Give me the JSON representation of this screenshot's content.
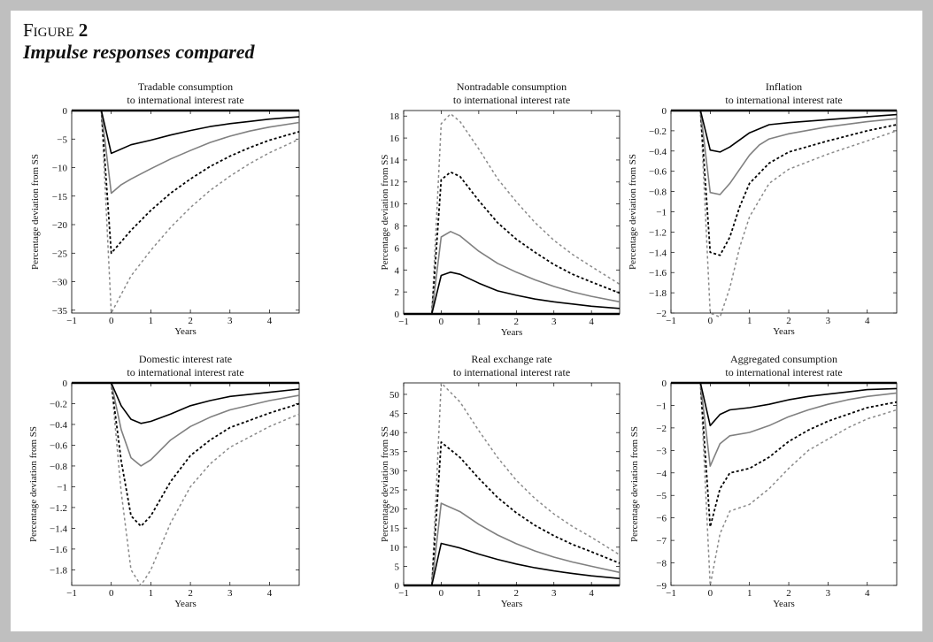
{
  "figure": {
    "label": "Figure",
    "number": "2",
    "title": "Impulse responses compared"
  },
  "chart_data": [
    {
      "type": "line",
      "title": [
        "Tradable consumption",
        "to international interest rate"
      ],
      "xlabel": "Years",
      "ylabel": "Percentage deviation from SS",
      "xlim": [
        -1,
        4.75
      ],
      "ylim": [
        -35.5,
        0
      ],
      "xticks": [
        -1,
        0,
        1,
        2,
        3,
        4
      ],
      "yticks": [
        0,
        -5,
        -10,
        -15,
        -20,
        -25,
        -30,
        -35
      ],
      "grid": false,
      "series": [
        {
          "style": "thick-black",
          "x": [
            -1,
            4.75
          ],
          "y": [
            0,
            0
          ]
        },
        {
          "style": "black-solid",
          "x": [
            -1,
            -0.25,
            0,
            0.5,
            1,
            1.5,
            2,
            2.5,
            3,
            3.5,
            4,
            4.75
          ],
          "y": [
            0,
            0,
            -7.5,
            -6,
            -5.2,
            -4.3,
            -3.5,
            -2.8,
            -2.3,
            -1.9,
            -1.5,
            -1.1
          ]
        },
        {
          "style": "gray-solid",
          "x": [
            -1,
            -0.25,
            0,
            0.25,
            0.5,
            1,
            1.5,
            2,
            2.5,
            3,
            3.5,
            4,
            4.75
          ],
          "y": [
            0,
            0,
            -14.5,
            -13,
            -12,
            -10.2,
            -8.5,
            -7,
            -5.6,
            -4.5,
            -3.6,
            -2.9,
            -2.1
          ]
        },
        {
          "style": "black-dashed",
          "x": [
            -1,
            -0.25,
            0,
            0.5,
            1,
            1.5,
            2,
            2.5,
            3,
            3.5,
            4,
            4.75
          ],
          "y": [
            0,
            0,
            -25,
            -21,
            -17.5,
            -14.5,
            -12,
            -9.8,
            -8,
            -6.5,
            -5.2,
            -3.7
          ]
        },
        {
          "style": "gray-dashed",
          "x": [
            -1,
            -0.25,
            0,
            0.5,
            1,
            1.5,
            2,
            2.5,
            3,
            3.5,
            4,
            4.75
          ],
          "y": [
            0,
            0,
            -35.5,
            -29,
            -24.5,
            -20.5,
            -17,
            -14,
            -11.5,
            -9.3,
            -7.4,
            -5
          ]
        }
      ]
    },
    {
      "type": "line",
      "title": [
        "Nontradable consumption",
        "to international interest rate"
      ],
      "xlabel": "Years",
      "ylabel": "Percentage deviation from SS",
      "xlim": [
        -1,
        4.75
      ],
      "ylim": [
        0,
        18.5
      ],
      "xticks": [
        -1,
        0,
        1,
        2,
        3,
        4
      ],
      "yticks": [
        0,
        2,
        4,
        6,
        8,
        10,
        12,
        14,
        16,
        18
      ],
      "grid": false,
      "series": [
        {
          "style": "thick-black",
          "x": [
            -1,
            4.75
          ],
          "y": [
            0,
            0
          ]
        },
        {
          "style": "black-solid",
          "x": [
            -1,
            -0.25,
            0,
            0.25,
            0.5,
            1,
            1.5,
            2,
            2.5,
            3,
            3.5,
            4,
            4.75
          ],
          "y": [
            0,
            0,
            3.5,
            3.8,
            3.6,
            2.8,
            2.1,
            1.7,
            1.35,
            1.1,
            0.9,
            0.7,
            0.5
          ]
        },
        {
          "style": "gray-solid",
          "x": [
            -1,
            -0.25,
            0,
            0.25,
            0.5,
            1,
            1.5,
            2,
            2.5,
            3,
            3.5,
            4,
            4.75
          ],
          "y": [
            0,
            0,
            7,
            7.5,
            7.1,
            5.7,
            4.6,
            3.8,
            3.1,
            2.5,
            2,
            1.6,
            1.1
          ]
        },
        {
          "style": "black-dashed",
          "x": [
            -1,
            -0.25,
            0,
            0.25,
            0.5,
            1,
            1.5,
            2,
            2.5,
            3,
            3.5,
            4,
            4.75
          ],
          "y": [
            0,
            0,
            12.2,
            12.9,
            12.5,
            10.3,
            8.3,
            6.8,
            5.6,
            4.5,
            3.6,
            2.9,
            1.9
          ]
        },
        {
          "style": "gray-dashed",
          "x": [
            -1,
            -0.25,
            0,
            0.25,
            0.5,
            1,
            1.5,
            2,
            2.5,
            3,
            3.5,
            4,
            4.75
          ],
          "y": [
            0,
            0,
            17.3,
            18.2,
            17.5,
            15,
            12.3,
            10.2,
            8.3,
            6.7,
            5.4,
            4.3,
            2.7
          ]
        }
      ]
    },
    {
      "type": "line",
      "title": [
        "Inflation",
        "to international interest rate"
      ],
      "xlabel": "Years",
      "ylabel": "Percentage deviation from SS",
      "xlim": [
        -1,
        4.75
      ],
      "ylim": [
        -2,
        0
      ],
      "xticks": [
        -1,
        0,
        1,
        2,
        3,
        4
      ],
      "yticks": [
        0,
        -0.2,
        -0.4,
        -0.6,
        -0.8,
        -1,
        -1.2,
        -1.4,
        -1.6,
        -1.8,
        -2
      ],
      "grid": false,
      "series": [
        {
          "style": "thick-black",
          "x": [
            -1,
            4.75
          ],
          "y": [
            0,
            0
          ]
        },
        {
          "style": "black-solid",
          "x": [
            -1,
            -0.25,
            0,
            0.25,
            0.5,
            0.75,
            1,
            1.5,
            2,
            3,
            4,
            4.75
          ],
          "y": [
            0,
            0,
            -0.39,
            -0.41,
            -0.36,
            -0.29,
            -0.22,
            -0.14,
            -0.12,
            -0.09,
            -0.06,
            -0.04
          ]
        },
        {
          "style": "gray-solid",
          "x": [
            -1,
            -0.25,
            0,
            0.25,
            0.5,
            0.75,
            1,
            1.25,
            1.5,
            2,
            3,
            4,
            4.75
          ],
          "y": [
            0,
            0,
            -0.81,
            -0.83,
            -0.72,
            -0.58,
            -0.44,
            -0.34,
            -0.28,
            -0.23,
            -0.16,
            -0.11,
            -0.08
          ]
        },
        {
          "style": "black-dashed",
          "x": [
            -1,
            -0.25,
            0,
            0.25,
            0.5,
            0.75,
            1,
            1.5,
            2,
            3,
            4,
            4.75
          ],
          "y": [
            0,
            0,
            -1.4,
            -1.43,
            -1.25,
            -0.95,
            -0.72,
            -0.52,
            -0.41,
            -0.3,
            -0.2,
            -0.14
          ]
        },
        {
          "style": "gray-dashed",
          "x": [
            -1,
            -0.25,
            0,
            0.25,
            0.5,
            0.75,
            1,
            1.5,
            2,
            3,
            4,
            4.75
          ],
          "y": [
            0,
            0,
            -2,
            -2.05,
            -1.75,
            -1.35,
            -1.05,
            -0.72,
            -0.58,
            -0.43,
            -0.3,
            -0.2
          ]
        }
      ]
    },
    {
      "type": "line",
      "title": [
        "Domestic interest rate",
        "to international interest rate"
      ],
      "xlabel": "Years",
      "ylabel": "Percentage deviation from SS",
      "xlim": [
        -1,
        4.75
      ],
      "ylim": [
        -1.95,
        0
      ],
      "xticks": [
        -1,
        0,
        1,
        2,
        3,
        4
      ],
      "yticks": [
        0,
        -0.2,
        -0.4,
        -0.6,
        -0.8,
        -1,
        -1.2,
        -1.4,
        -1.6,
        -1.8
      ],
      "grid": false,
      "series": [
        {
          "style": "thick-black",
          "x": [
            -1,
            4.75
          ],
          "y": [
            0,
            0
          ]
        },
        {
          "style": "black-solid",
          "x": [
            -1,
            0,
            0.25,
            0.5,
            0.75,
            1,
            1.5,
            2,
            2.5,
            3,
            4,
            4.75
          ],
          "y": [
            0,
            0,
            -0.22,
            -0.35,
            -0.39,
            -0.37,
            -0.3,
            -0.22,
            -0.17,
            -0.13,
            -0.09,
            -0.06
          ]
        },
        {
          "style": "gray-solid",
          "x": [
            -1,
            0,
            0.25,
            0.5,
            0.75,
            1,
            1.5,
            2,
            2.5,
            3,
            4,
            4.75
          ],
          "y": [
            0,
            0,
            -0.45,
            -0.72,
            -0.8,
            -0.74,
            -0.55,
            -0.42,
            -0.33,
            -0.26,
            -0.17,
            -0.12
          ]
        },
        {
          "style": "black-dashed",
          "x": [
            -1,
            0,
            0.25,
            0.5,
            0.75,
            1,
            1.5,
            2,
            2.5,
            3,
            4,
            4.75
          ],
          "y": [
            0,
            0,
            -0.75,
            -1.28,
            -1.38,
            -1.28,
            -0.95,
            -0.7,
            -0.55,
            -0.43,
            -0.29,
            -0.2
          ]
        },
        {
          "style": "gray-dashed",
          "x": [
            -1,
            0,
            0.25,
            0.5,
            0.75,
            1,
            1.5,
            2,
            2.5,
            3,
            4,
            4.75
          ],
          "y": [
            0,
            0,
            -1.05,
            -1.8,
            -1.95,
            -1.8,
            -1.35,
            -1,
            -0.78,
            -0.62,
            -0.42,
            -0.3
          ]
        }
      ]
    },
    {
      "type": "line",
      "title": [
        "Real exchange rate",
        "to international interest rate"
      ],
      "xlabel": "Years",
      "ylabel": "Percentage deviation from SS",
      "xlim": [
        -1,
        4.75
      ],
      "ylim": [
        0,
        53
      ],
      "xticks": [
        -1,
        0,
        1,
        2,
        3,
        4
      ],
      "yticks": [
        0,
        5,
        10,
        15,
        20,
        25,
        30,
        35,
        40,
        45,
        50
      ],
      "grid": false,
      "series": [
        {
          "style": "thick-black",
          "x": [
            -1,
            4.75
          ],
          "y": [
            0,
            0
          ]
        },
        {
          "style": "black-solid",
          "x": [
            -1,
            -0.25,
            0,
            0.5,
            1,
            1.5,
            2,
            2.5,
            3,
            3.5,
            4,
            4.75
          ],
          "y": [
            0,
            0,
            11,
            9.8,
            8.2,
            6.8,
            5.6,
            4.6,
            3.8,
            3.1,
            2.5,
            1.8
          ]
        },
        {
          "style": "gray-solid",
          "x": [
            -1,
            -0.25,
            0,
            0.5,
            1,
            1.5,
            2,
            2.5,
            3,
            3.5,
            4,
            4.75
          ],
          "y": [
            0,
            0,
            21.5,
            19.3,
            16,
            13.2,
            10.9,
            9,
            7.4,
            6.1,
            5,
            3.4
          ]
        },
        {
          "style": "black-dashed",
          "x": [
            -1,
            -0.25,
            0,
            0.5,
            1,
            1.5,
            2,
            2.5,
            3,
            3.5,
            4,
            4.75
          ],
          "y": [
            0,
            0,
            37.5,
            33.5,
            28,
            23,
            19,
            15.7,
            13,
            10.7,
            8.8,
            5.8
          ]
        },
        {
          "style": "gray-dashed",
          "x": [
            -1,
            -0.25,
            0,
            0.5,
            1,
            1.5,
            2,
            2.5,
            3,
            3.5,
            4,
            4.75
          ],
          "y": [
            0,
            0,
            53,
            48,
            40.5,
            33.5,
            27.5,
            22.7,
            18.7,
            15.4,
            12.6,
            8
          ]
        }
      ]
    },
    {
      "type": "line",
      "title": [
        "Aggregated consumption",
        "to international interest rate"
      ],
      "xlabel": "Years",
      "ylabel": "Percentage deviation from SS",
      "xlim": [
        -1,
        4.75
      ],
      "ylim": [
        -9,
        0
      ],
      "xticks": [
        -1,
        0,
        1,
        2,
        3,
        4
      ],
      "yticks": [
        0,
        -1,
        -2,
        -3,
        -4,
        -5,
        -6,
        -7,
        -8,
        -9
      ],
      "grid": false,
      "series": [
        {
          "style": "thick-black",
          "x": [
            -1,
            4.75
          ],
          "y": [
            0,
            0
          ]
        },
        {
          "style": "black-solid",
          "x": [
            -1,
            -0.25,
            0,
            0.25,
            0.5,
            1,
            1.5,
            2,
            2.5,
            3,
            3.5,
            4,
            4.75
          ],
          "y": [
            0,
            0,
            -1.9,
            -1.4,
            -1.2,
            -1.1,
            -0.95,
            -0.75,
            -0.6,
            -0.5,
            -0.4,
            -0.3,
            -0.25
          ]
        },
        {
          "style": "gray-solid",
          "x": [
            -1,
            -0.25,
            0,
            0.25,
            0.5,
            1,
            1.5,
            2,
            2.5,
            3,
            3.5,
            4,
            4.75
          ],
          "y": [
            0,
            0,
            -3.7,
            -2.7,
            -2.35,
            -2.2,
            -1.9,
            -1.5,
            -1.2,
            -0.95,
            -0.75,
            -0.6,
            -0.45
          ]
        },
        {
          "style": "black-dashed",
          "x": [
            -1,
            -0.25,
            0,
            0.25,
            0.5,
            1,
            1.5,
            2,
            2.5,
            3,
            3.5,
            4,
            4.75
          ],
          "y": [
            0,
            0,
            -6.4,
            -4.7,
            -4,
            -3.8,
            -3.3,
            -2.6,
            -2.1,
            -1.7,
            -1.4,
            -1.1,
            -0.85
          ]
        },
        {
          "style": "gray-dashed",
          "x": [
            -1,
            -0.25,
            0,
            0.25,
            0.5,
            1,
            1.5,
            2,
            2.5,
            3,
            3.5,
            4,
            4.75
          ],
          "y": [
            0,
            0,
            -9,
            -6.7,
            -5.7,
            -5.4,
            -4.7,
            -3.8,
            -3,
            -2.5,
            -2,
            -1.6,
            -1.2
          ]
        }
      ]
    }
  ]
}
